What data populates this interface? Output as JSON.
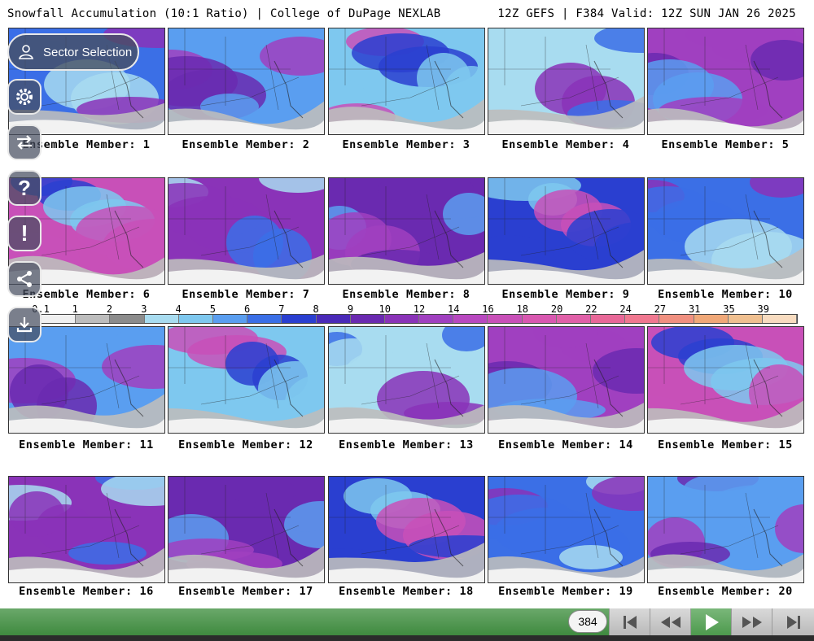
{
  "header": {
    "left": "Snowfall Accumulation (10:1 Ratio) | College of DuPage NEXLAB",
    "right": "12Z GEFS | F384 Valid: 12Z SUN JAN 26 2025"
  },
  "sidebar": {
    "sector_label": "Sector Selection"
  },
  "colorbar": {
    "ticks": [
      "0.1",
      "1",
      "2",
      "3",
      "4",
      "5",
      "6",
      "7",
      "8",
      "9",
      "10",
      "12",
      "14",
      "16",
      "18",
      "20",
      "22",
      "24",
      "27",
      "31",
      "35",
      "39"
    ],
    "colors": [
      "#f0f0f0",
      "#bdbdbd",
      "#8c8c8c",
      "#a8dcf0",
      "#7ec8ef",
      "#5a9ef0",
      "#3b6fe6",
      "#2a3fd0",
      "#4a2ab8",
      "#6a2ab0",
      "#8a33b8",
      "#a040c0",
      "#b848c0",
      "#c850b8",
      "#d858b0",
      "#e060a8",
      "#e86898",
      "#f07890",
      "#f09080",
      "#f0a878",
      "#f0c090",
      "#f8dcc0"
    ]
  },
  "panels": [
    {
      "label": "Ensemble Member: 1"
    },
    {
      "label": "Ensemble Member: 2"
    },
    {
      "label": "Ensemble Member: 3"
    },
    {
      "label": "Ensemble Member: 4"
    },
    {
      "label": "Ensemble Member: 5"
    },
    {
      "label": "Ensemble Member: 6"
    },
    {
      "label": "Ensemble Member: 7"
    },
    {
      "label": "Ensemble Member: 8"
    },
    {
      "label": "Ensemble Member: 9"
    },
    {
      "label": "Ensemble Member: 10"
    },
    {
      "label": "Ensemble Member: 11"
    },
    {
      "label": "Ensemble Member: 12"
    },
    {
      "label": "Ensemble Member: 13"
    },
    {
      "label": "Ensemble Member: 14"
    },
    {
      "label": "Ensemble Member: 15"
    },
    {
      "label": "Ensemble Member: 16"
    },
    {
      "label": "Ensemble Member: 17"
    },
    {
      "label": "Ensemble Member: 18"
    },
    {
      "label": "Ensemble Member: 19"
    },
    {
      "label": "Ensemble Member: 20"
    }
  ],
  "player": {
    "frame": "384",
    "controls": [
      "first-frame",
      "step-back",
      "play",
      "step-forward",
      "last-frame"
    ]
  }
}
